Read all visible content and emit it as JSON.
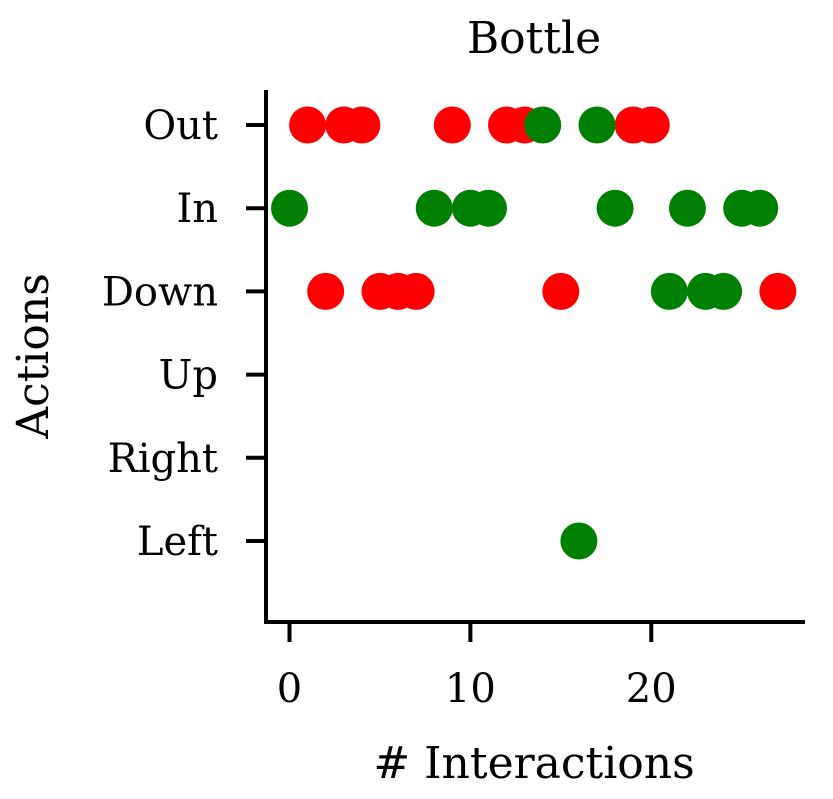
{
  "chart_data": {
    "type": "scatter",
    "title": "Bottle",
    "xlabel": "# Interactions",
    "ylabel": "Actions",
    "xlim": [
      -1.3,
      28.5
    ],
    "xticks": [
      0,
      10,
      20
    ],
    "categories": [
      "Out",
      "In",
      "Down",
      "Up",
      "Right",
      "Left"
    ],
    "grid": false,
    "series": [
      {
        "color": "#ff0000",
        "points": [
          {
            "x": 1,
            "y": "Out"
          },
          {
            "x": 3,
            "y": "Out"
          },
          {
            "x": 4,
            "y": "Out"
          },
          {
            "x": 9,
            "y": "Out"
          },
          {
            "x": 12,
            "y": "Out"
          },
          {
            "x": 13,
            "y": "Out"
          },
          {
            "x": 19,
            "y": "Out"
          },
          {
            "x": 20,
            "y": "Out"
          },
          {
            "x": 2,
            "y": "Down"
          },
          {
            "x": 5,
            "y": "Down"
          },
          {
            "x": 6,
            "y": "Down"
          },
          {
            "x": 7,
            "y": "Down"
          },
          {
            "x": 15,
            "y": "Down"
          },
          {
            "x": 27,
            "y": "Down"
          }
        ]
      },
      {
        "color": "#008000",
        "points": [
          {
            "x": 14,
            "y": "Out"
          },
          {
            "x": 17,
            "y": "Out"
          },
          {
            "x": 0,
            "y": "In"
          },
          {
            "x": 8,
            "y": "In"
          },
          {
            "x": 10,
            "y": "In"
          },
          {
            "x": 11,
            "y": "In"
          },
          {
            "x": 18,
            "y": "In"
          },
          {
            "x": 22,
            "y": "In"
          },
          {
            "x": 25,
            "y": "In"
          },
          {
            "x": 26,
            "y": "In"
          },
          {
            "x": 21,
            "y": "Down"
          },
          {
            "x": 23,
            "y": "Down"
          },
          {
            "x": 24,
            "y": "Down"
          },
          {
            "x": 16,
            "y": "Left"
          }
        ]
      }
    ]
  }
}
